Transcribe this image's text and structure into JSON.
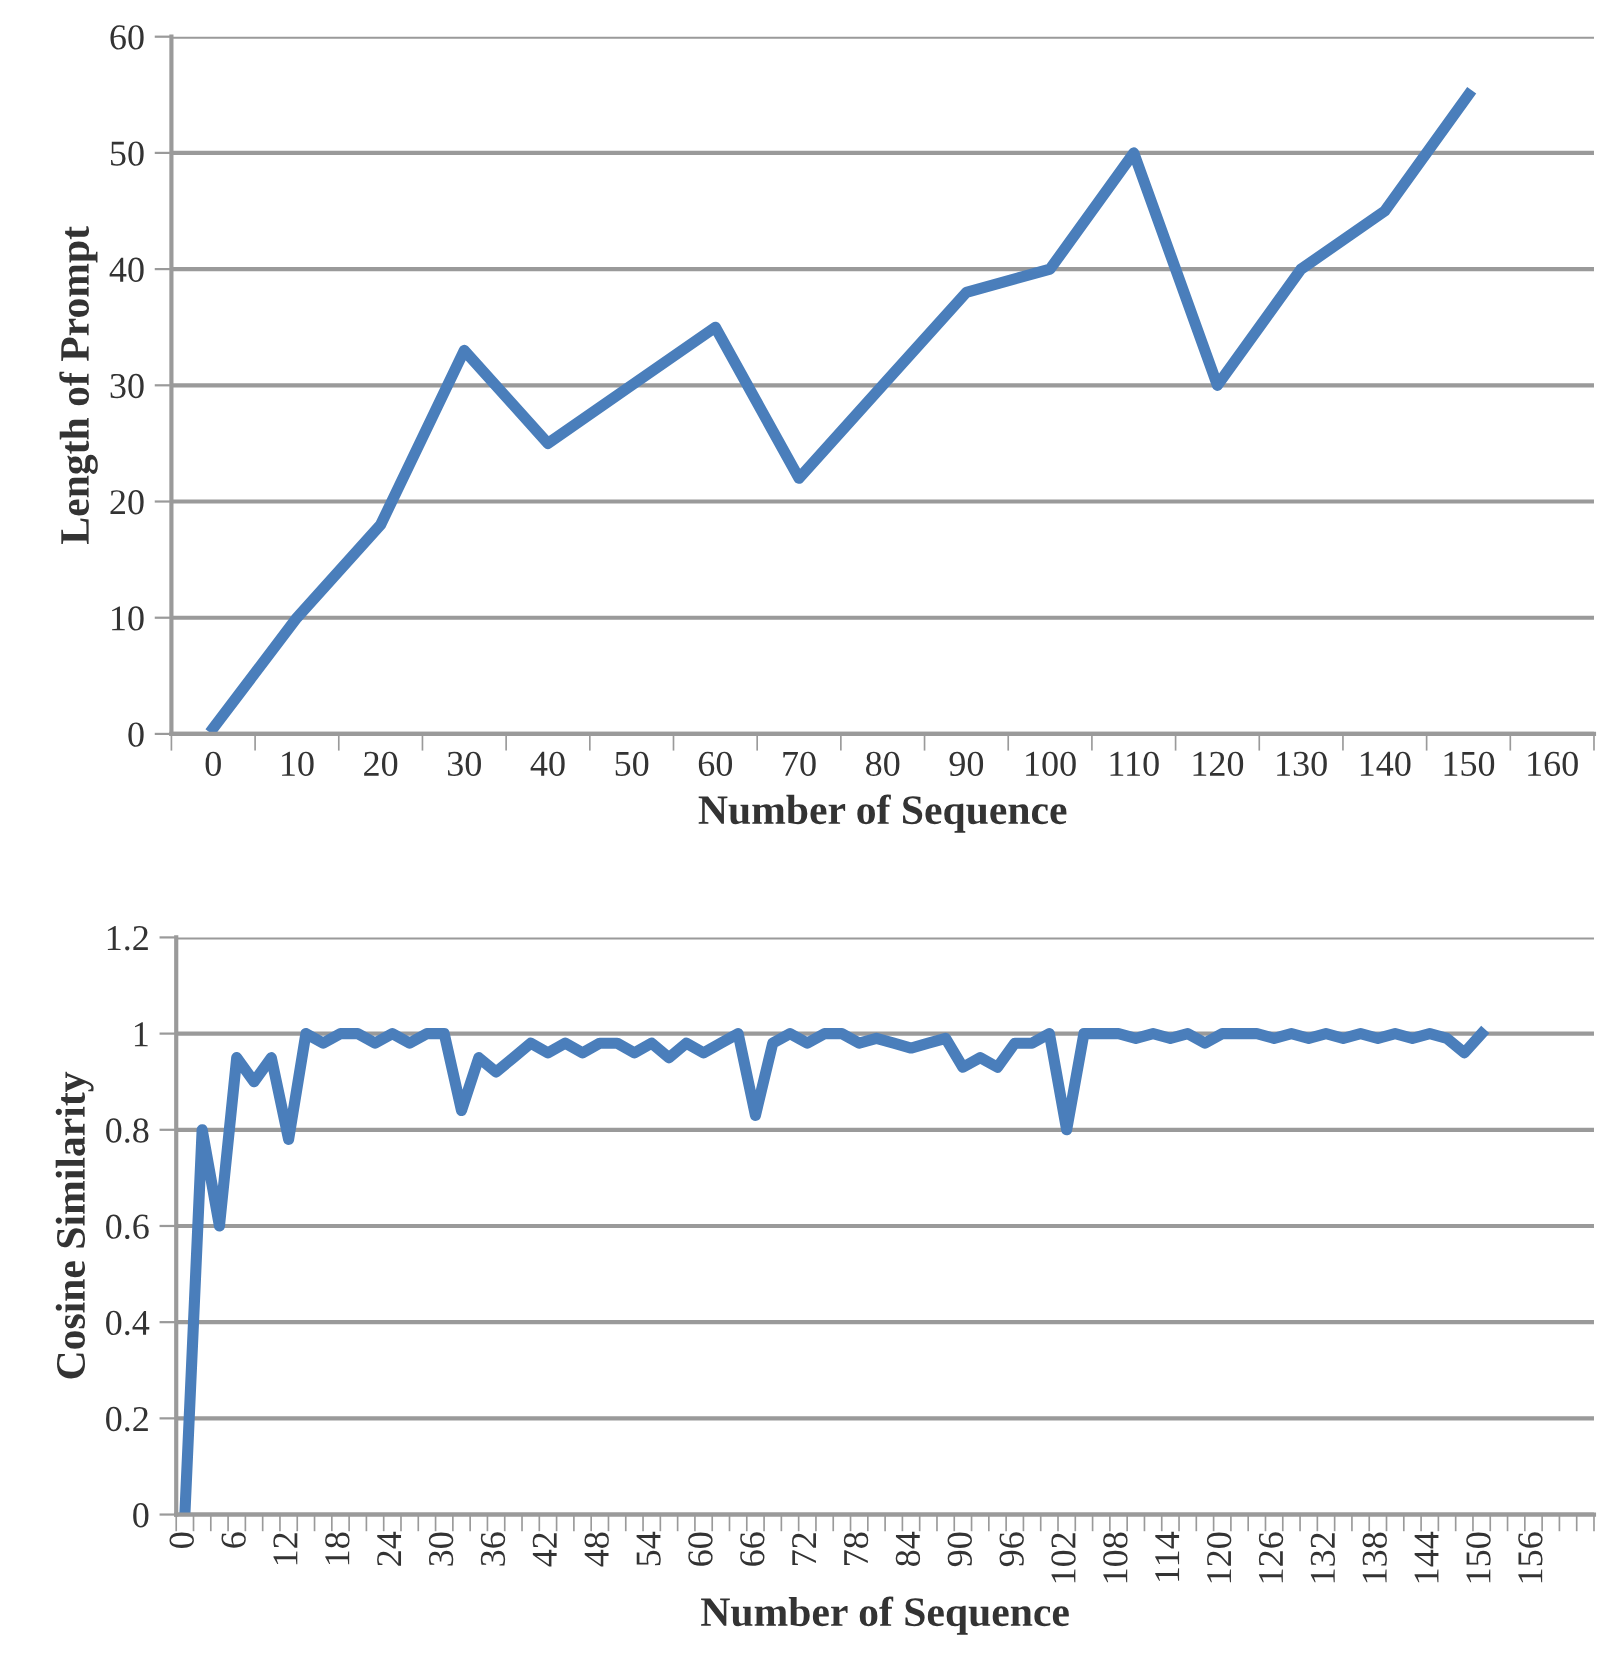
{
  "chart_data": [
    {
      "type": "line",
      "xlabel": "Number of Sequence",
      "ylabel": "Length of Prompt",
      "categories": [
        "0",
        "10",
        "20",
        "30",
        "40",
        "50",
        "60",
        "70",
        "80",
        "90",
        "100",
        "110",
        "120",
        "130",
        "140",
        "150",
        "160"
      ],
      "series": [
        {
          "color": "#4a7ebb",
          "values": [
            0.5,
            10,
            18,
            33,
            25,
            30,
            35,
            22,
            30,
            38,
            40,
            50,
            30,
            40,
            45,
            55,
            null
          ]
        }
      ],
      "ylim": [
        0,
        60
      ],
      "yticks": [
        0,
        10,
        20,
        30,
        40,
        50,
        60
      ],
      "grid": "y",
      "marker": "none",
      "line_style": "solid"
    },
    {
      "type": "line",
      "xlabel": "Number of Sequence",
      "ylabel": "Cosine Similarity",
      "categories": [
        "0",
        null,
        null,
        "6",
        null,
        null,
        "12",
        null,
        null,
        "18",
        null,
        null,
        "24",
        null,
        null,
        "30",
        null,
        null,
        "36",
        null,
        null,
        "42",
        null,
        null,
        "48",
        null,
        null,
        "54",
        null,
        null,
        "60",
        null,
        null,
        "66",
        null,
        null,
        "72",
        null,
        null,
        "78",
        null,
        null,
        "84",
        null,
        null,
        "90",
        null,
        null,
        "96",
        null,
        null,
        "102",
        null,
        null,
        "108",
        null,
        null,
        "114",
        null,
        null,
        "120",
        null,
        null,
        "126",
        null,
        null,
        "132",
        null,
        null,
        "138",
        null,
        null,
        "144",
        null,
        null,
        "150",
        null,
        null,
        "156",
        null,
        null,
        null
      ],
      "series": [
        {
          "color": "#4a7ebb",
          "values": [
            0,
            0.8,
            0.6,
            0.95,
            0.9,
            0.95,
            0.78,
            1,
            0.98,
            1,
            1,
            0.98,
            1,
            0.98,
            1,
            1,
            0.84,
            0.95,
            0.92,
            0.95,
            0.98,
            0.96,
            0.98,
            0.96,
            0.98,
            0.98,
            0.96,
            0.98,
            0.95,
            0.98,
            0.96,
            0.98,
            1,
            0.83,
            0.98,
            1,
            0.98,
            1,
            1,
            0.98,
            0.99,
            0.98,
            0.97,
            0.98,
            0.99,
            0.93,
            0.95,
            0.93,
            0.98,
            0.98,
            1,
            0.8,
            1,
            1,
            1,
            0.99,
            1,
            0.99,
            1,
            0.98,
            1,
            1,
            1,
            0.99,
            1,
            0.99,
            1,
            0.99,
            1,
            0.99,
            1,
            0.99,
            1,
            0.99,
            0.96,
            1,
            null,
            null,
            null,
            null,
            null,
            null
          ]
        }
      ],
      "ylim": [
        0,
        1.2
      ],
      "yticks": [
        0,
        0.2,
        0.4,
        0.6,
        0.8,
        1,
        1.2
      ],
      "grid": "y",
      "marker": "none",
      "line_style": "solid"
    }
  ]
}
